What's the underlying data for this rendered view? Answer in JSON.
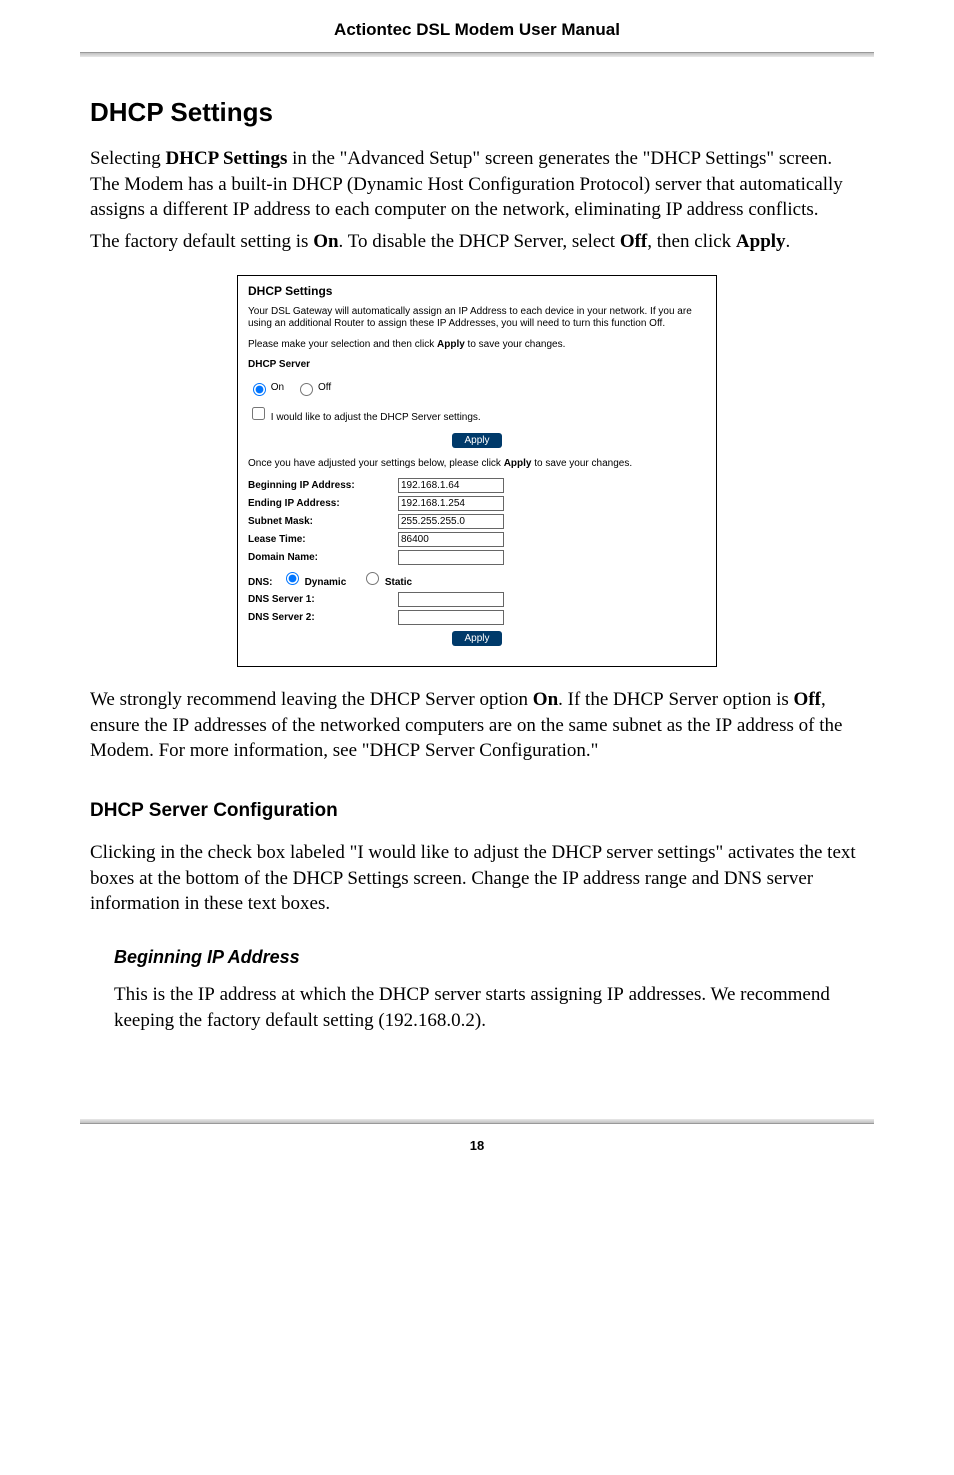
{
  "header": {
    "title": "Actiontec DSL Modem User Manual"
  },
  "section": {
    "heading": "DHCP Settings",
    "intro_para": "Selecting DHCP Settings in the \"Advanced Setup\" screen generates the \"DHCP Settings\" screen. The Modem has a built-in DHCP (Dynamic Host Configuration Protocol) server that automatically assigns a different IP address to each computer on the network, eliminating IP address conflicts.",
    "intro_para2": "The factory default setting is On. To disable the DHCP Server, select Off, then click Apply.",
    "after_screenshot": "We strongly recommend leaving the DHCP Server option On. If the DHCP Server option is Off, ensure the IP addresses of the networked computers are on the same subnet as the IP address of the Modem. For more information, see \"DHCP Server Configuration.\""
  },
  "panel": {
    "title": "DHCP Settings",
    "desc1": "Your DSL Gateway will automatically assign an IP Address to each device in your network. If you are using an additional Router to assign these IP Addresses, you will need to turn this function Off.",
    "desc2_a": "Please make your selection and then click ",
    "desc2_b": " to save your changes.",
    "server_label": "DHCP Server",
    "radio_on": "On",
    "radio_off": "Off",
    "checkbox_label": "I would like to adjust the DHCP Server settings.",
    "apply_label": "Apply",
    "desc3_a": "Once you have adjusted your settings below, please click ",
    "desc3_b": " to save your changes.",
    "fields": {
      "begin_ip_label": "Beginning IP Address:",
      "begin_ip_value": "192.168.1.64",
      "end_ip_label": "Ending IP Address:",
      "end_ip_value": "192.168.1.254",
      "subnet_label": "Subnet Mask:",
      "subnet_value": "255.255.255.0",
      "lease_label": "Lease Time:",
      "lease_value": "86400",
      "domain_label": "Domain Name:",
      "domain_value": "",
      "dns_label": "DNS:",
      "dns_dynamic": "Dynamic",
      "dns_static": "Static",
      "dns1_label": "DNS Server 1:",
      "dns1_value": "",
      "dns2_label": "DNS Server 2:",
      "dns2_value": ""
    }
  },
  "sub1": {
    "heading": "DHCP Server Configuration",
    "para": "Clicking in the check box labeled \"I would like to adjust the DHCP server settings\" activates the text boxes at the bottom of the DHCP Settings screen. Change the IP address range and DNS server information in these text boxes."
  },
  "sub2": {
    "heading": "Beginning IP Address",
    "para": "This is the IP address at which the DHCP server starts assigning IP addresses. We recommend keeping the factory default setting (192.168.0.2)."
  },
  "footer": {
    "page_number": "18"
  }
}
